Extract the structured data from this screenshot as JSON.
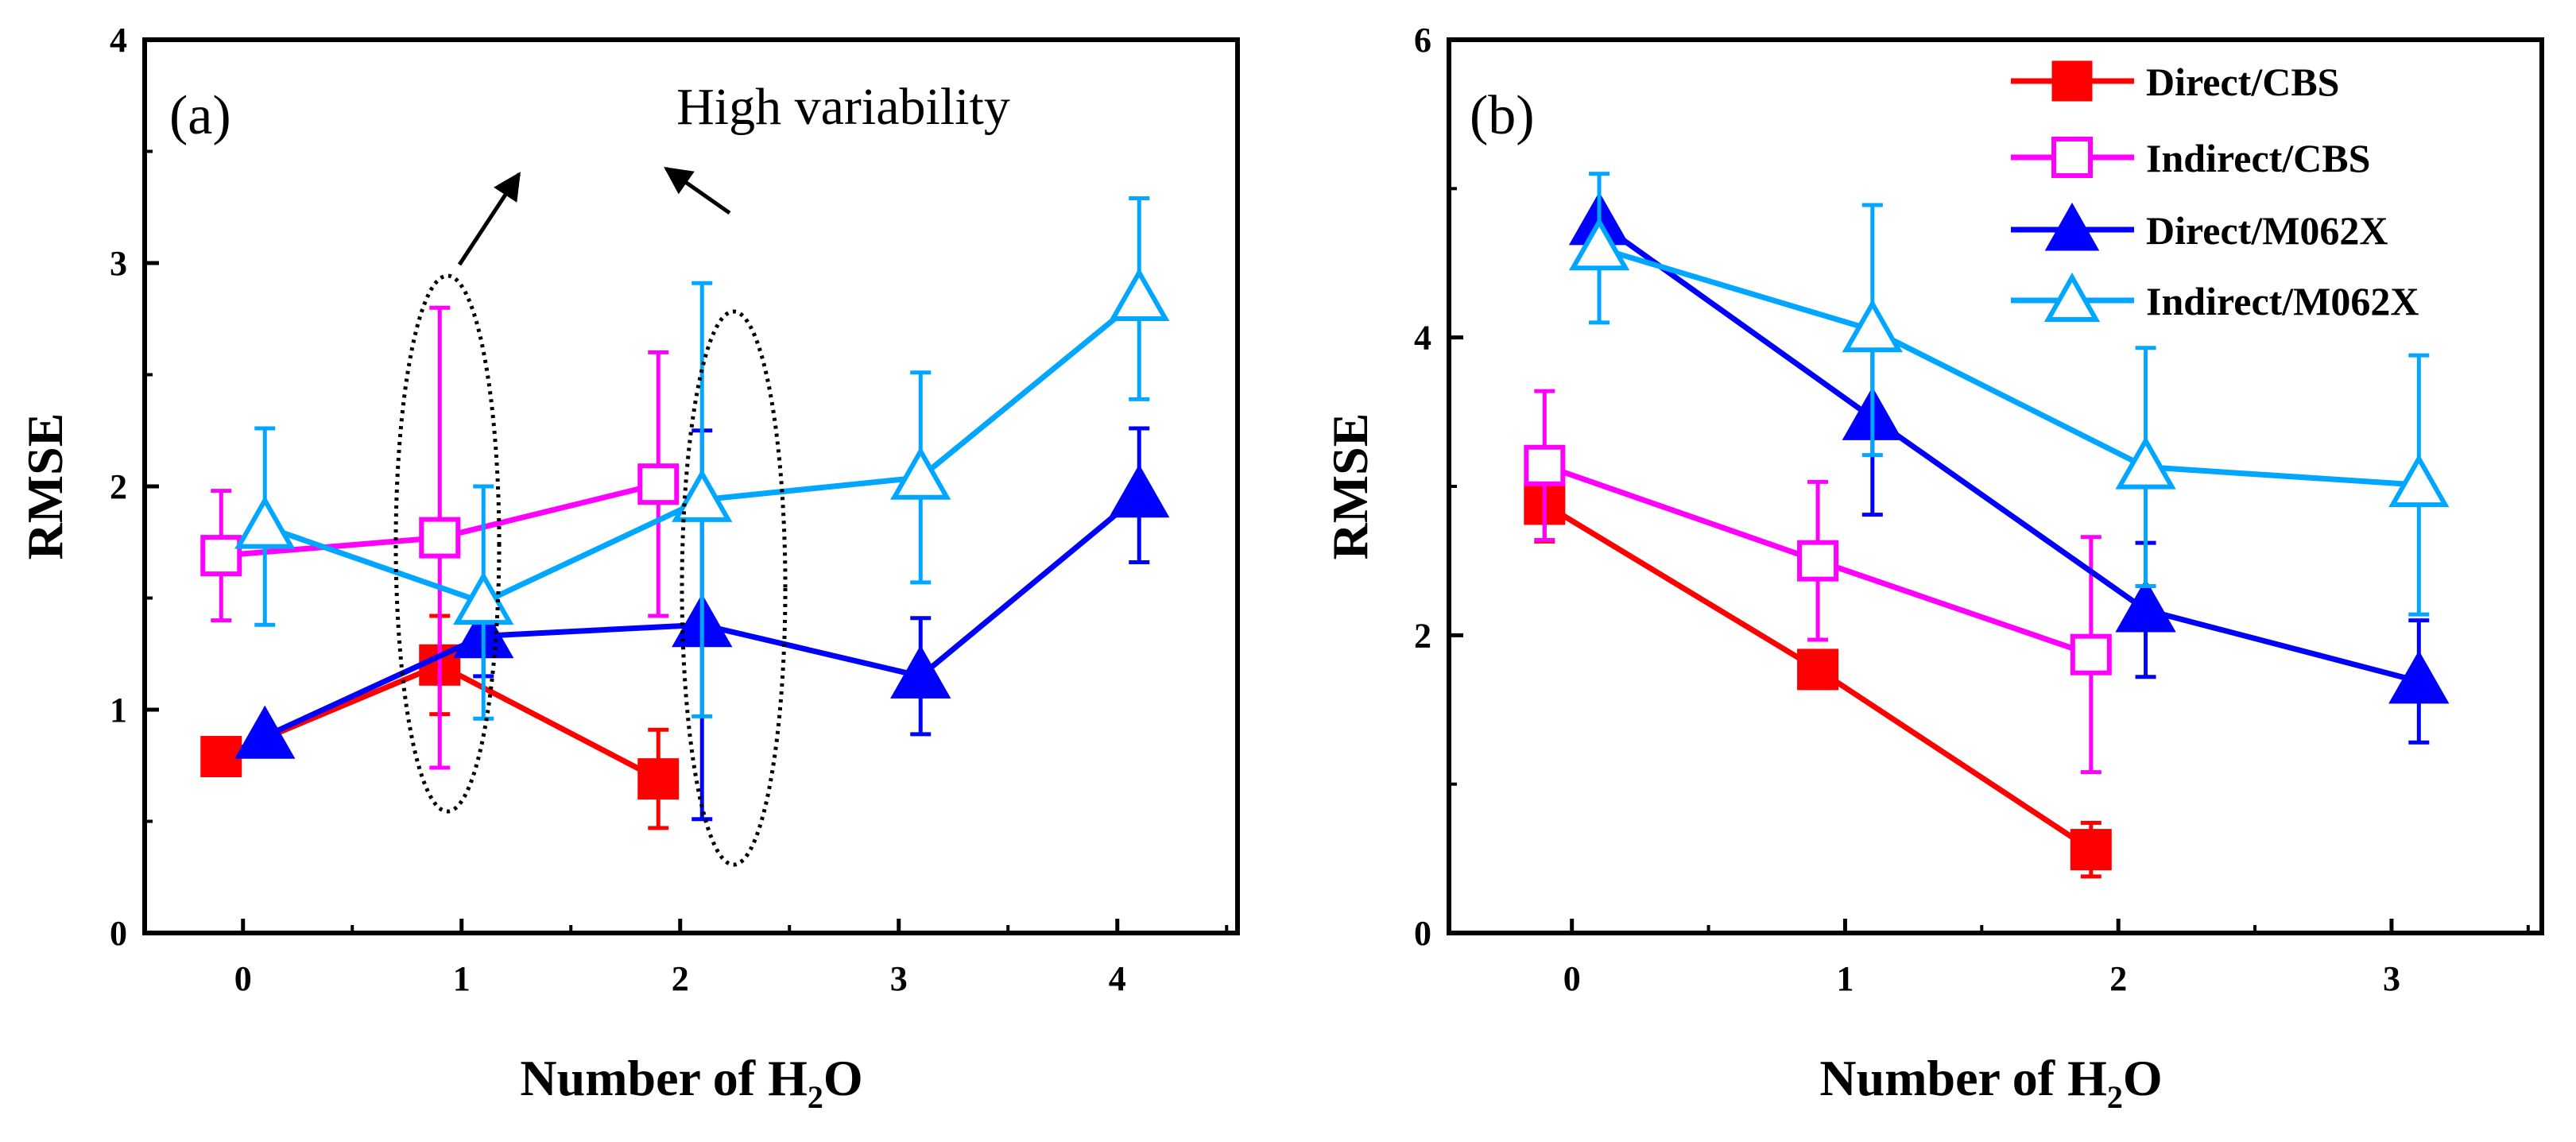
{
  "figure": {
    "shared_xlabel_main": "Number of H",
    "shared_xlabel_sub": "2",
    "shared_xlabel_tail": "O",
    "annotation": "High variability"
  },
  "legend": [
    {
      "label": "Direct/CBS",
      "color": "#ff0000",
      "marker": "square",
      "filled": true
    },
    {
      "label": "Indirect/CBS",
      "color": "#ff00ff",
      "marker": "square",
      "filled": false
    },
    {
      "label": "Direct/M062X",
      "color": "#0000ff",
      "marker": "triangle",
      "filled": true
    },
    {
      "label": "Indirect/M062X",
      "color": "#00a6ff",
      "marker": "triangle",
      "filled": false
    }
  ],
  "chart_data": [
    {
      "panel": "(a)",
      "type": "line",
      "ylabel": "RMSE",
      "xlabel": "Number of H2O",
      "xlim": [
        -0.45,
        4.55
      ],
      "ylim": [
        0,
        4
      ],
      "xticks": [
        "0",
        "1",
        "2",
        "3",
        "4"
      ],
      "yticks": [
        "0",
        "1",
        "2",
        "3",
        "4"
      ],
      "series": [
        {
          "name": "Direct/CBS",
          "x": [
            -0.1,
            0.9,
            1.9
          ],
          "y": [
            0.79,
            1.2,
            0.69
          ],
          "err_low": [
            null,
            0.22,
            0.22
          ],
          "err_high": [
            null,
            0.22,
            0.22
          ]
        },
        {
          "name": "Indirect/CBS",
          "x": [
            -0.1,
            0.9,
            1.9
          ],
          "y": [
            1.69,
            1.77,
            2.01
          ],
          "err_low": [
            0.29,
            1.03,
            0.59
          ],
          "err_high": [
            0.29,
            1.03,
            0.59
          ]
        },
        {
          "name": "Direct/M062X",
          "x": [
            0.1,
            1.1,
            2.1,
            3.1,
            4.1
          ],
          "y": [
            0.88,
            1.33,
            1.38,
            1.15,
            1.96
          ],
          "err_low": [
            null,
            0.18,
            0.87,
            0.26,
            0.3
          ],
          "err_high": [
            null,
            0.18,
            0.87,
            0.26,
            0.3
          ]
        },
        {
          "name": "Indirect/M062X",
          "x": [
            0.1,
            1.1,
            2.1,
            3.1,
            4.1
          ],
          "y": [
            1.82,
            1.48,
            1.94,
            2.04,
            2.84
          ],
          "err_low": [
            0.44,
            0.52,
            0.97,
            0.47,
            0.45
          ],
          "err_high": [
            0.44,
            0.52,
            0.97,
            0.47,
            0.45
          ]
        }
      ]
    },
    {
      "panel": "(b)",
      "type": "line",
      "ylabel": "RMSE",
      "xlabel": "Number of H2O",
      "xlim": [
        -0.45,
        3.55
      ],
      "ylim": [
        0,
        6
      ],
      "xticks": [
        "0",
        "1",
        "2",
        "3"
      ],
      "yticks": [
        "0",
        "2",
        "4",
        "6"
      ],
      "series": [
        {
          "name": "Direct/CBS",
          "x": [
            -0.1,
            0.9,
            1.9
          ],
          "y": [
            2.88,
            1.77,
            0.56
          ],
          "err_low": [
            0.25,
            null,
            0.18
          ],
          "err_high": [
            0.25,
            null,
            0.18
          ]
        },
        {
          "name": "Indirect/CBS",
          "x": [
            -0.1,
            0.9,
            1.9
          ],
          "y": [
            3.14,
            2.5,
            1.87
          ],
          "err_low": [
            0.5,
            0.53,
            0.79
          ],
          "err_high": [
            0.5,
            0.53,
            0.79
          ]
        },
        {
          "name": "Direct/M062X",
          "x": [
            0.1,
            1.1,
            2.1,
            3.1
          ],
          "y": [
            4.77,
            3.46,
            2.17,
            1.69
          ],
          "err_low": [
            null,
            0.65,
            0.45,
            0.41
          ],
          "err_high": [
            null,
            0.65,
            0.45,
            0.41
          ]
        },
        {
          "name": "Indirect/M062X",
          "x": [
            0.1,
            1.1,
            2.1,
            3.1
          ],
          "y": [
            4.6,
            4.05,
            3.13,
            3.01
          ],
          "err_low": [
            0.5,
            0.84,
            0.8,
            0.87
          ],
          "err_high": [
            0.5,
            0.84,
            0.8,
            0.87
          ]
        }
      ]
    }
  ]
}
